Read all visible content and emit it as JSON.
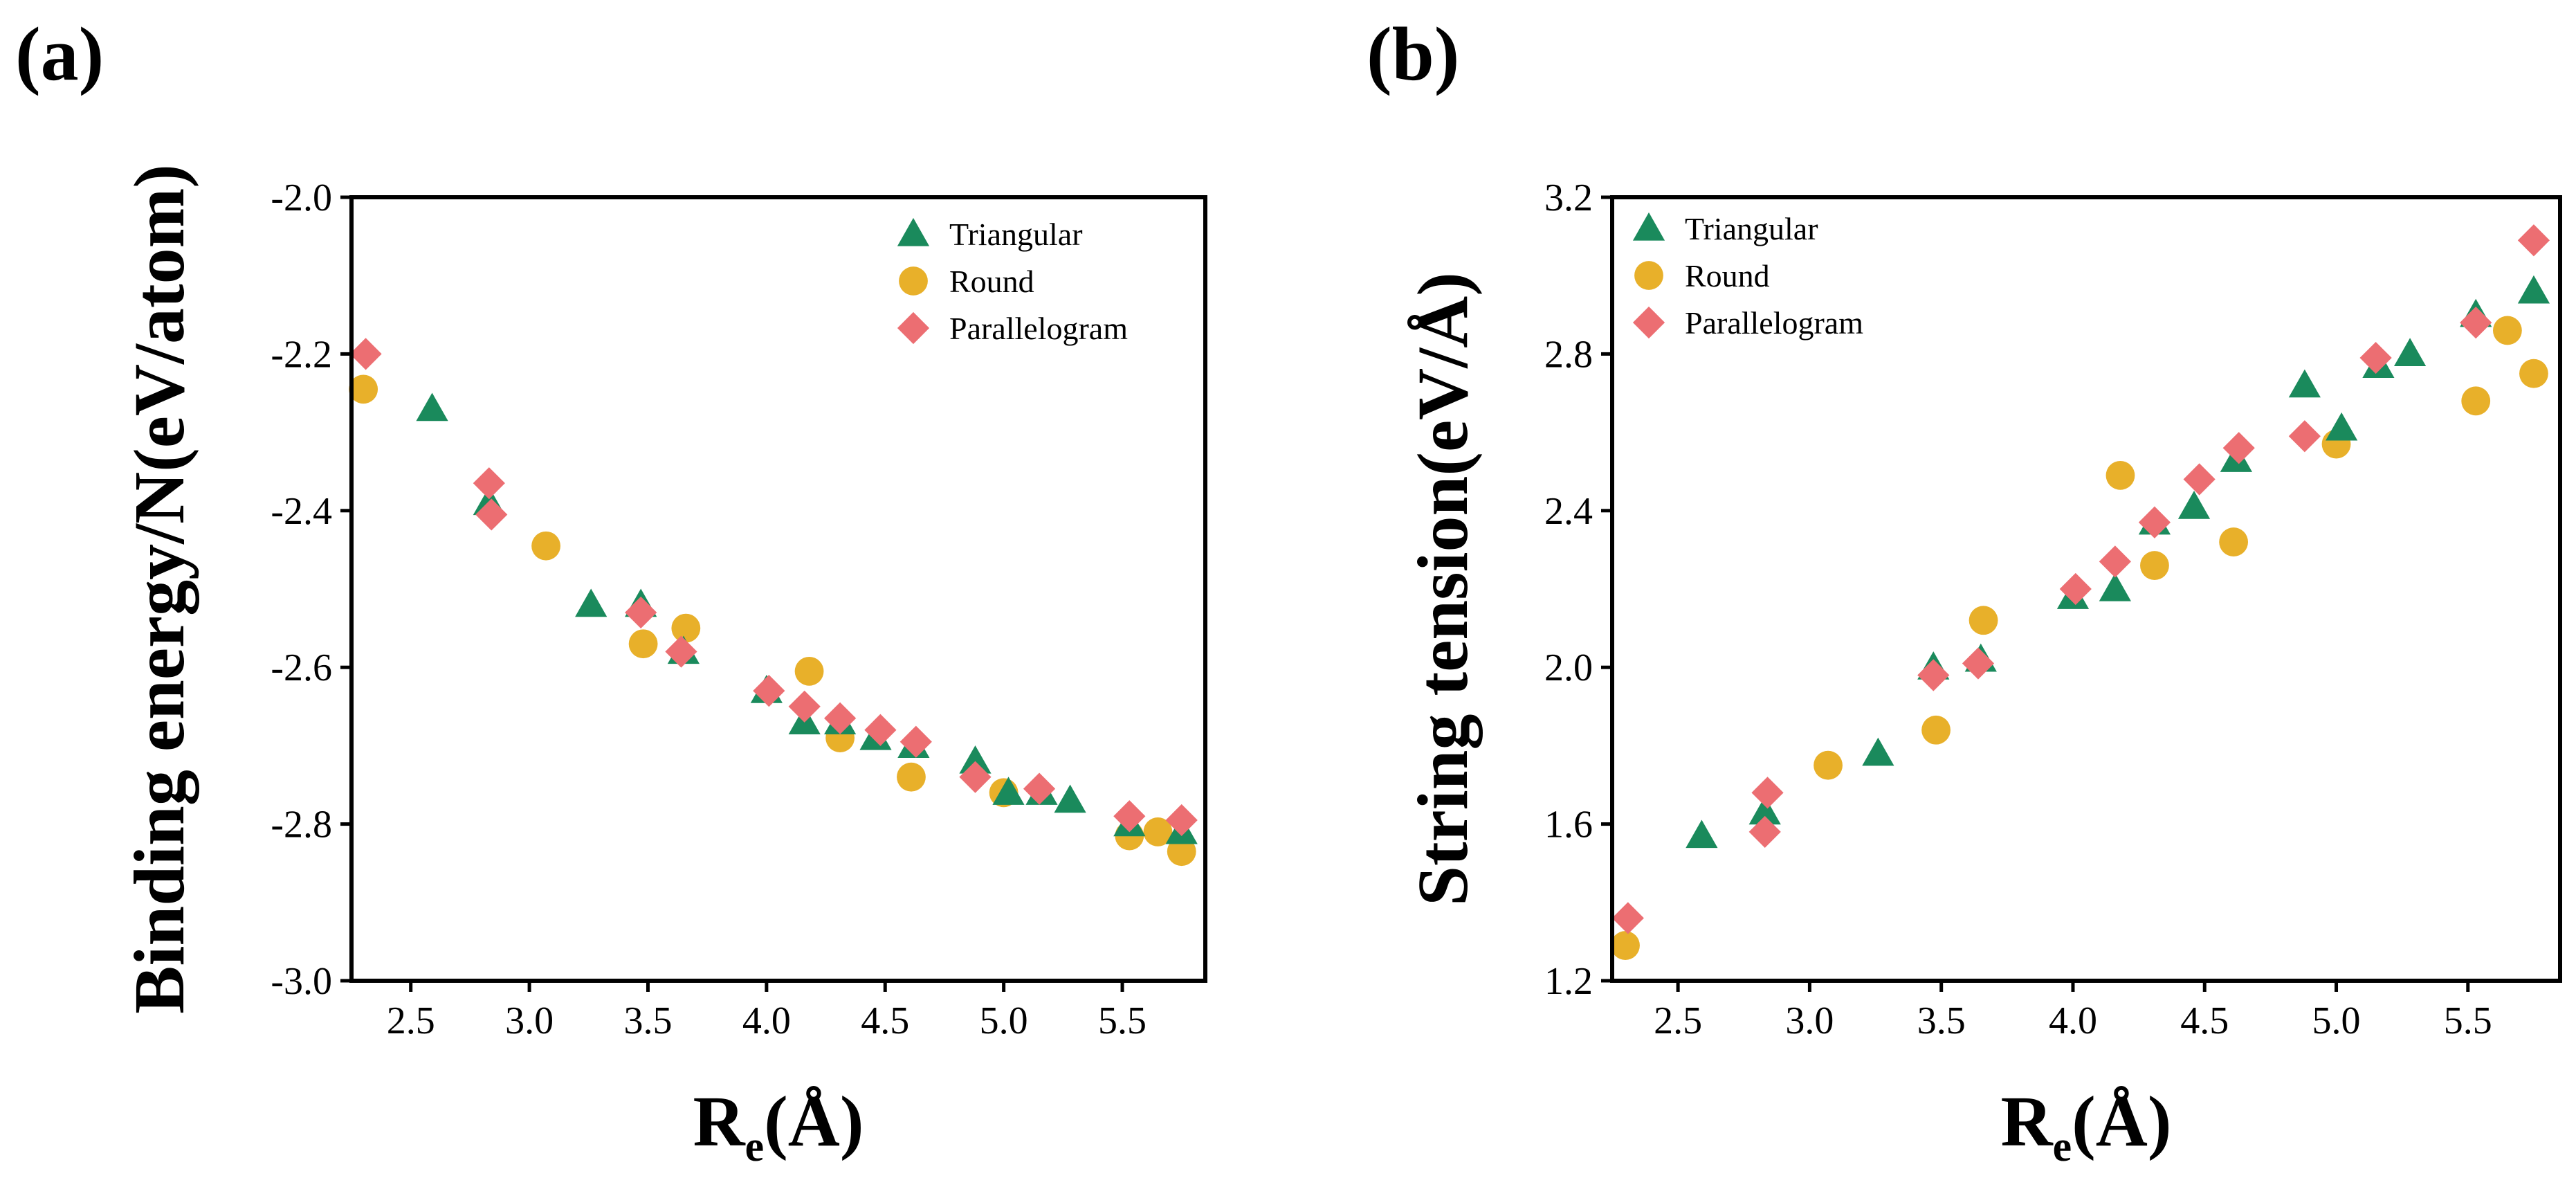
{
  "chart_data": [
    {
      "type": "scatter",
      "panel_label": "(a)",
      "title": "",
      "xlabel": "R",
      "xlabel_sub": "e",
      "xlabel_unit": "(Å)",
      "ylabel": "Binding energy/N(eV/atom)",
      "xlim": [
        2.25,
        5.85
      ],
      "ylim": [
        -3.0,
        -2.0
      ],
      "xticks": [
        2.5,
        3.0,
        3.5,
        4.0,
        4.5,
        5.0,
        5.5
      ],
      "xtick_labels": [
        "2.5",
        "3.0",
        "3.5",
        "4.0",
        "4.5",
        "5.0",
        "5.5"
      ],
      "yticks": [
        -3.0,
        -2.8,
        -2.6,
        -2.4,
        -2.2,
        -2.0
      ],
      "ytick_labels": [
        "-3.0",
        "-2.8",
        "-2.6",
        "-2.4",
        "-2.2",
        "-2.0"
      ],
      "legend_position": "top-right",
      "grid": false,
      "series": [
        {
          "name": "Triangular",
          "marker": "triangle",
          "color": "#1a8a5c",
          "x": [
            2.59,
            2.83,
            3.26,
            3.47,
            3.65,
            4.0,
            4.16,
            4.31,
            4.46,
            4.62,
            4.88,
            5.02,
            5.16,
            5.28,
            5.53,
            5.75
          ],
          "y": [
            -2.27,
            -2.39,
            -2.52,
            -2.52,
            -2.58,
            -2.63,
            -2.67,
            -2.67,
            -2.69,
            -2.7,
            -2.72,
            -2.76,
            -2.76,
            -2.77,
            -2.8,
            -2.81
          ]
        },
        {
          "name": "Round",
          "marker": "circle",
          "color": "#e8b02a",
          "x": [
            2.3,
            3.07,
            3.48,
            3.66,
            4.18,
            4.31,
            4.61,
            5.0,
            5.53,
            5.65,
            5.75
          ],
          "y": [
            -2.245,
            -2.445,
            -2.57,
            -2.55,
            -2.605,
            -2.69,
            -2.74,
            -2.76,
            -2.815,
            -2.81,
            -2.835
          ]
        },
        {
          "name": "Parallelogram",
          "marker": "diamond",
          "color": "#ec6e72",
          "x": [
            2.31,
            2.83,
            2.84,
            3.47,
            3.64,
            4.01,
            4.16,
            4.31,
            4.48,
            4.63,
            4.88,
            5.15,
            5.53,
            5.75
          ],
          "y": [
            -2.2,
            -2.365,
            -2.405,
            -2.53,
            -2.58,
            -2.63,
            -2.65,
            -2.665,
            -2.68,
            -2.695,
            -2.74,
            -2.755,
            -2.79,
            -2.795
          ]
        }
      ]
    },
    {
      "type": "scatter",
      "panel_label": "(b)",
      "title": "",
      "xlabel": "R",
      "xlabel_sub": "e",
      "xlabel_unit": "(Å)",
      "ylabel": "String tension(eV/Å)",
      "xlim": [
        2.25,
        5.85
      ],
      "ylim": [
        1.2,
        3.2
      ],
      "xticks": [
        2.5,
        3.0,
        3.5,
        4.0,
        4.5,
        5.0,
        5.5
      ],
      "xtick_labels": [
        "2.5",
        "3.0",
        "3.5",
        "4.0",
        "4.5",
        "5.0",
        "5.5"
      ],
      "yticks": [
        1.2,
        1.6,
        2.0,
        2.4,
        2.8,
        3.2
      ],
      "ytick_labels": [
        "1.2",
        "1.6",
        "2.0",
        "2.4",
        "2.8",
        "3.2"
      ],
      "legend_position": "top-left",
      "grid": false,
      "series": [
        {
          "name": "Triangular",
          "marker": "triangle",
          "color": "#1a8a5c",
          "x": [
            2.59,
            2.83,
            3.26,
            3.47,
            3.65,
            4.0,
            4.16,
            4.31,
            4.46,
            4.62,
            4.88,
            5.02,
            5.16,
            5.28,
            5.53,
            5.75
          ],
          "y": [
            1.57,
            1.63,
            1.78,
            2.0,
            2.02,
            2.18,
            2.2,
            2.37,
            2.41,
            2.53,
            2.72,
            2.61,
            2.77,
            2.8,
            2.9,
            2.96
          ]
        },
        {
          "name": "Round",
          "marker": "circle",
          "color": "#e8b02a",
          "x": [
            2.3,
            3.07,
            3.48,
            3.66,
            4.18,
            4.31,
            4.61,
            5.0,
            5.53,
            5.65,
            5.75
          ],
          "y": [
            1.29,
            1.75,
            1.84,
            2.12,
            2.49,
            2.26,
            2.32,
            2.57,
            2.68,
            2.86,
            2.75
          ]
        },
        {
          "name": "Parallelogram",
          "marker": "diamond",
          "color": "#ec6e72",
          "x": [
            2.31,
            2.83,
            2.84,
            3.47,
            3.64,
            4.01,
            4.16,
            4.31,
            4.48,
            4.63,
            4.88,
            5.15,
            5.53,
            5.75
          ],
          "y": [
            1.36,
            1.58,
            1.68,
            1.98,
            2.01,
            2.2,
            2.27,
            2.37,
            2.48,
            2.56,
            2.59,
            2.79,
            2.88,
            3.09
          ]
        }
      ]
    }
  ]
}
